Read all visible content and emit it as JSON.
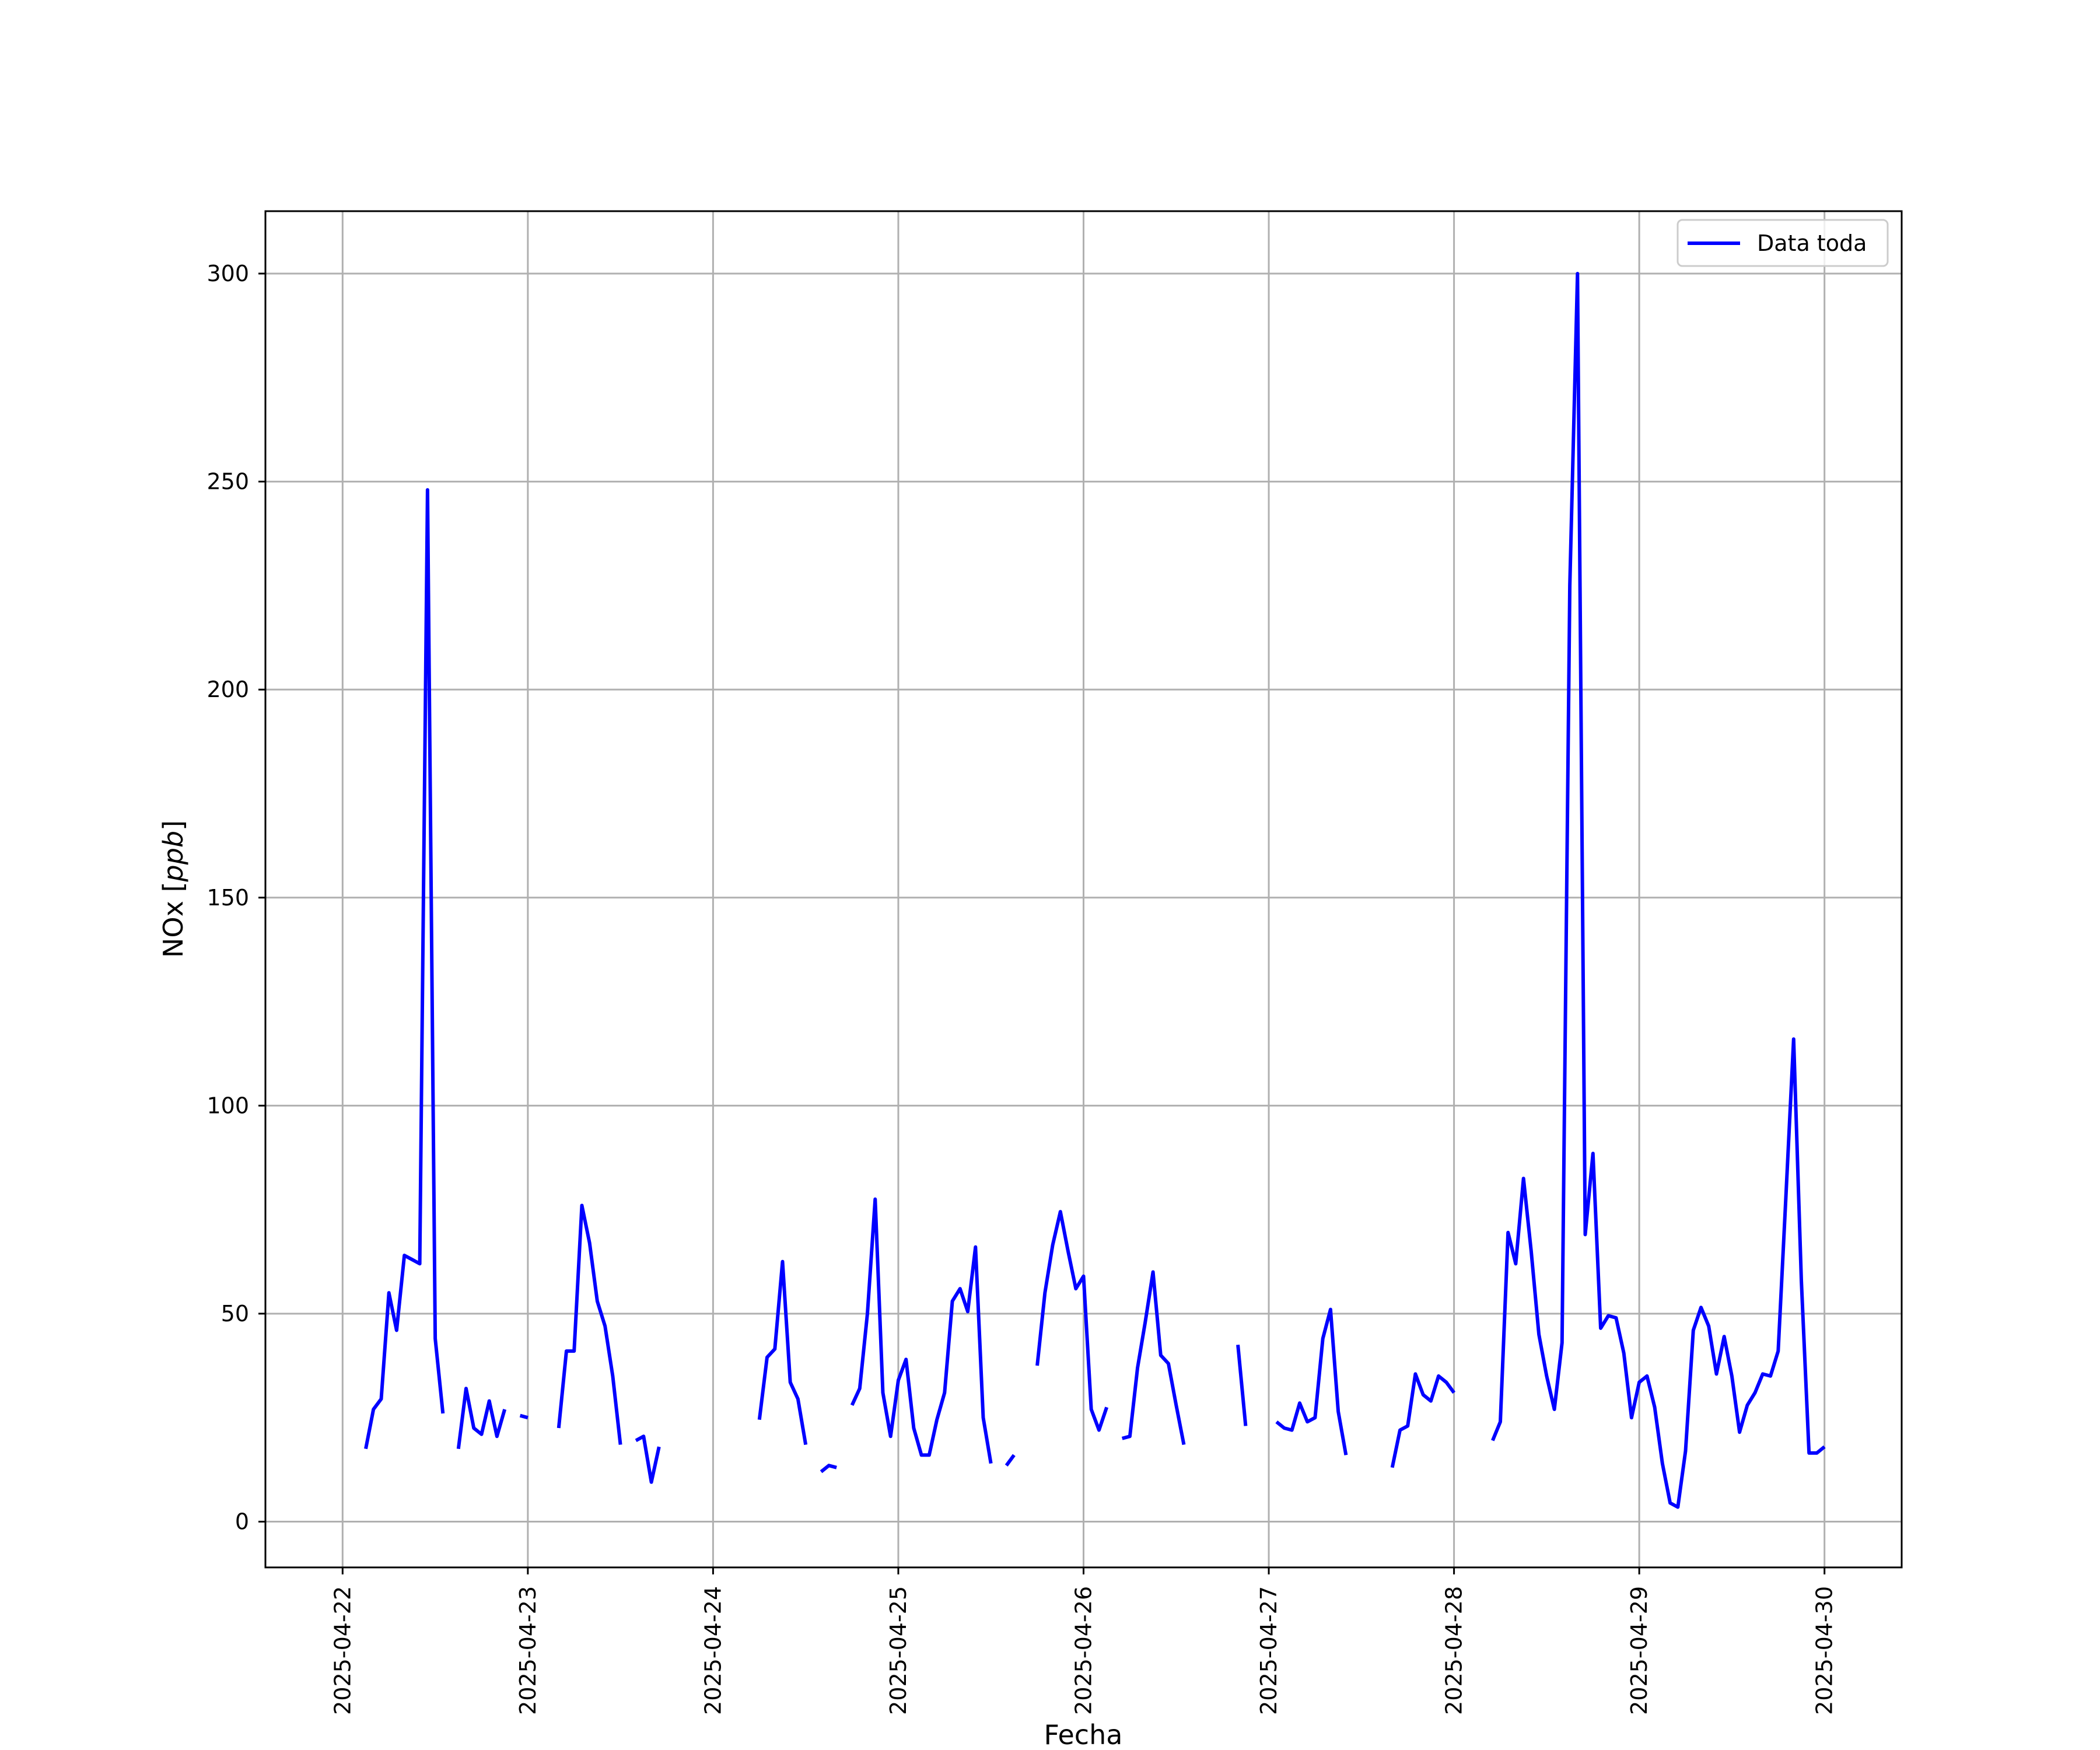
{
  "chart_data": {
    "type": "line",
    "title": "",
    "xlabel": "Fecha",
    "ylabel": "NOx [ppb]",
    "ylabel_parts": {
      "text": "NOx [",
      "unit": "ppb",
      "close": "]"
    },
    "x_ticks": [
      "2025-04-22",
      "2025-04-23",
      "2025-04-24",
      "2025-04-25",
      "2025-04-26",
      "2025-04-27",
      "2025-04-28",
      "2025-04-29",
      "2025-04-30"
    ],
    "y_ticks": [
      0,
      50,
      100,
      150,
      200,
      250,
      300
    ],
    "xlim": [
      "2025-04-21T14:00",
      "2025-04-30T10:00"
    ],
    "ylim": [
      -11,
      315
    ],
    "grid": true,
    "legend_position": "top-right",
    "colors": {
      "series": "#0000ff",
      "grid": "#b0b0b0",
      "axis": "#000000"
    },
    "series": [
      {
        "name": "Data toda",
        "segments": [
          [
            [
              "2025-04-22T03:00",
              17.5
            ],
            [
              "2025-04-22T04:00",
              27
            ],
            [
              "2025-04-22T05:00",
              29.5
            ],
            [
              "2025-04-22T06:00",
              55
            ],
            [
              "2025-04-22T07:00",
              46
            ],
            [
              "2025-04-22T08:00",
              64
            ],
            [
              "2025-04-22T09:00",
              63
            ],
            [
              "2025-04-22T10:00",
              62
            ],
            [
              "2025-04-22T11:00",
              248
            ],
            [
              "2025-04-22T12:00",
              44
            ],
            [
              "2025-04-22T13:00",
              26
            ]
          ],
          [
            [
              "2025-04-22T15:00",
              17.5
            ],
            [
              "2025-04-22T16:00",
              32
            ],
            [
              "2025-04-22T17:00",
              22.5
            ],
            [
              "2025-04-22T18:00",
              21
            ],
            [
              "2025-04-22T19:00",
              29
            ],
            [
              "2025-04-22T20:00",
              20.5
            ],
            [
              "2025-04-22T21:00",
              27
            ]
          ],
          [
            [
              "2025-04-22T23:00",
              25.5
            ],
            [
              "2025-04-23T00:00",
              25
            ]
          ],
          [
            [
              "2025-04-23T04:00",
              22.5
            ],
            [
              "2025-04-23T05:00",
              41
            ],
            [
              "2025-04-23T06:00",
              41
            ],
            [
              "2025-04-23T07:00",
              76
            ],
            [
              "2025-04-23T08:00",
              67
            ],
            [
              "2025-04-23T09:00",
              53
            ],
            [
              "2025-04-23T10:00",
              47
            ],
            [
              "2025-04-23T11:00",
              35
            ],
            [
              "2025-04-23T12:00",
              18.5
            ]
          ],
          [
            [
              "2025-04-23T14:00",
              19.5
            ],
            [
              "2025-04-23T15:00",
              20.5
            ],
            [
              "2025-04-23T16:00",
              9.5
            ],
            [
              "2025-04-23T17:00",
              18
            ]
          ],
          [
            [
              "2025-04-24T06:00",
              24.5
            ],
            [
              "2025-04-24T07:00",
              39.5
            ],
            [
              "2025-04-24T08:00",
              41.5
            ],
            [
              "2025-04-24T09:00",
              62.5
            ],
            [
              "2025-04-24T10:00",
              33.5
            ],
            [
              "2025-04-24T11:00",
              29.5
            ],
            [
              "2025-04-24T12:00",
              18.5
            ]
          ],
          [
            [
              "2025-04-24T14:00",
              12
            ],
            [
              "2025-04-24T15:00",
              13.5
            ],
            [
              "2025-04-24T16:00",
              13
            ]
          ],
          [
            [
              "2025-04-24T18:00",
              28
            ],
            [
              "2025-04-24T19:00",
              32
            ],
            [
              "2025-04-24T20:00",
              50
            ],
            [
              "2025-04-24T21:00",
              77.5
            ],
            [
              "2025-04-24T22:00",
              31
            ],
            [
              "2025-04-24T23:00",
              20.5
            ],
            [
              "2025-04-25T00:00",
              34
            ],
            [
              "2025-04-25T01:00",
              39
            ],
            [
              "2025-04-25T02:00",
              22.5
            ],
            [
              "2025-04-25T03:00",
              16
            ],
            [
              "2025-04-25T04:00",
              16
            ],
            [
              "2025-04-25T05:00",
              24.5
            ],
            [
              "2025-04-25T06:00",
              31
            ],
            [
              "2025-04-25T07:00",
              53
            ],
            [
              "2025-04-25T08:00",
              56
            ],
            [
              "2025-04-25T09:00",
              50.5
            ],
            [
              "2025-04-25T10:00",
              66
            ],
            [
              "2025-04-25T11:00",
              25
            ],
            [
              "2025-04-25T12:00",
              14
            ]
          ],
          [
            [
              "2025-04-25T14:00",
              13.5
            ],
            [
              "2025-04-25T15:00",
              16
            ]
          ],
          [
            [
              "2025-04-25T18:00",
              37.5
            ],
            [
              "2025-04-25T19:00",
              55
            ],
            [
              "2025-04-25T20:00",
              66.5
            ],
            [
              "2025-04-25T21:00",
              74.5
            ],
            [
              "2025-04-25T22:00",
              65
            ],
            [
              "2025-04-25T23:00",
              56
            ],
            [
              "2025-04-26T00:00",
              59
            ],
            [
              "2025-04-26T01:00",
              27
            ],
            [
              "2025-04-26T02:00",
              22
            ],
            [
              "2025-04-26T03:00",
              27.5
            ]
          ],
          [
            [
              "2025-04-26T05:00",
              20
            ],
            [
              "2025-04-26T06:00",
              20.5
            ],
            [
              "2025-04-26T07:00",
              37
            ],
            [
              "2025-04-26T08:00",
              48
            ],
            [
              "2025-04-26T09:00",
              60
            ],
            [
              "2025-04-26T10:00",
              40
            ],
            [
              "2025-04-26T11:00",
              38
            ],
            [
              "2025-04-26T12:00",
              28
            ],
            [
              "2025-04-26T13:00",
              18.5
            ]
          ],
          [
            [
              "2025-04-26T20:00",
              42.5
            ],
            [
              "2025-04-26T21:00",
              23
            ]
          ],
          [
            [
              "2025-04-27T01:00",
              24
            ],
            [
              "2025-04-27T02:00",
              22.5
            ],
            [
              "2025-04-27T03:00",
              22
            ],
            [
              "2025-04-27T04:00",
              28.5
            ],
            [
              "2025-04-27T05:00",
              24
            ],
            [
              "2025-04-27T06:00",
              25
            ],
            [
              "2025-04-27T07:00",
              44
            ],
            [
              "2025-04-27T08:00",
              51
            ],
            [
              "2025-04-27T09:00",
              26.5
            ],
            [
              "2025-04-27T10:00",
              16
            ]
          ],
          [
            [
              "2025-04-27T16:00",
              13
            ],
            [
              "2025-04-27T17:00",
              22
            ],
            [
              "2025-04-27T18:00",
              23
            ],
            [
              "2025-04-27T19:00",
              35.5
            ],
            [
              "2025-04-27T20:00",
              30.5
            ],
            [
              "2025-04-27T21:00",
              29
            ],
            [
              "2025-04-27T22:00",
              35
            ],
            [
              "2025-04-27T23:00",
              33.5
            ],
            [
              "2025-04-28T00:00",
              31
            ]
          ],
          [
            [
              "2025-04-28T05:00",
              19.5
            ],
            [
              "2025-04-28T06:00",
              24
            ],
            [
              "2025-04-28T07:00",
              69.5
            ],
            [
              "2025-04-28T08:00",
              62
            ],
            [
              "2025-04-28T09:00",
              82.5
            ],
            [
              "2025-04-28T10:00",
              65
            ],
            [
              "2025-04-28T11:00",
              45
            ],
            [
              "2025-04-28T12:00",
              35
            ],
            [
              "2025-04-28T13:00",
              27
            ],
            [
              "2025-04-28T14:00",
              43
            ],
            [
              "2025-04-28T15:00",
              225
            ],
            [
              "2025-04-28T16:00",
              300
            ],
            [
              "2025-04-28T17:00",
              69
            ],
            [
              "2025-04-28T18:00",
              88.5
            ],
            [
              "2025-04-28T19:00",
              46.5
            ],
            [
              "2025-04-28T20:00",
              49.5
            ],
            [
              "2025-04-28T21:00",
              49
            ],
            [
              "2025-04-28T22:00",
              40.5
            ],
            [
              "2025-04-28T23:00",
              25
            ],
            [
              "2025-04-29T00:00",
              33.5
            ],
            [
              "2025-04-29T01:00",
              35
            ],
            [
              "2025-04-29T02:00",
              27.5
            ],
            [
              "2025-04-29T03:00",
              14
            ],
            [
              "2025-04-29T04:00",
              4.5
            ],
            [
              "2025-04-29T05:00",
              3.5
            ],
            [
              "2025-04-29T06:00",
              17
            ],
            [
              "2025-04-29T07:00",
              46
            ],
            [
              "2025-04-29T08:00",
              51.5
            ],
            [
              "2025-04-29T09:00",
              47
            ],
            [
              "2025-04-29T10:00",
              35.5
            ],
            [
              "2025-04-29T11:00",
              44.5
            ],
            [
              "2025-04-29T12:00",
              35
            ],
            [
              "2025-04-29T13:00",
              21.5
            ],
            [
              "2025-04-29T14:00",
              28
            ],
            [
              "2025-04-29T15:00",
              31
            ],
            [
              "2025-04-29T16:00",
              35.5
            ],
            [
              "2025-04-29T17:00",
              35
            ],
            [
              "2025-04-29T18:00",
              41
            ],
            [
              "2025-04-29T19:00",
              78
            ],
            [
              "2025-04-29T20:00",
              116
            ],
            [
              "2025-04-29T21:00",
              58
            ],
            [
              "2025-04-29T22:00",
              16.5
            ],
            [
              "2025-04-29T23:00",
              16.5
            ],
            [
              "2025-04-30T00:00",
              18
            ]
          ]
        ]
      }
    ]
  }
}
